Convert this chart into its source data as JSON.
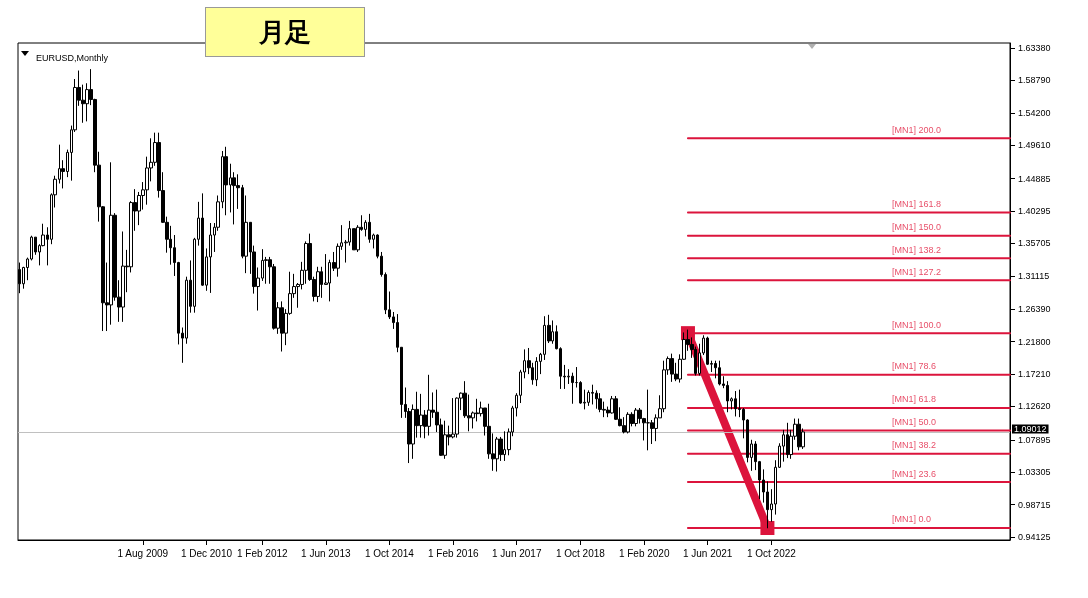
{
  "chart_data": {
    "type": "candlestick",
    "title": "月足",
    "subtitle": "EURUSD,Monthly",
    "color": "#000000",
    "x": [
      "2007-01",
      "2007-02",
      "2007-03",
      "2007-04",
      "2007-05",
      "2007-06",
      "2007-07",
      "2007-08",
      "2007-09",
      "2007-10",
      "2007-11",
      "2007-12",
      "2008-01",
      "2008-02",
      "2008-03",
      "2008-04",
      "2008-05",
      "2008-06",
      "2008-07",
      "2008-08",
      "2008-09",
      "2008-10",
      "2008-11",
      "2008-12",
      "2009-01",
      "2009-02",
      "2009-03",
      "2009-04",
      "2009-05",
      "2009-06",
      "2009-07",
      "2009-08",
      "2009-09",
      "2009-10",
      "2009-11",
      "2009-12",
      "2010-01",
      "2010-02",
      "2010-03",
      "2010-04",
      "2010-05",
      "2010-06",
      "2010-07",
      "2010-08",
      "2010-09",
      "2010-10",
      "2010-11",
      "2010-12",
      "2011-01",
      "2011-02",
      "2011-03",
      "2011-04",
      "2011-05",
      "2011-06",
      "2011-07",
      "2011-08",
      "2011-09",
      "2011-10",
      "2011-11",
      "2011-12",
      "2012-01",
      "2012-02",
      "2012-03",
      "2012-04",
      "2012-05",
      "2012-06",
      "2012-07",
      "2012-08",
      "2012-09",
      "2012-10",
      "2012-11",
      "2012-12",
      "2013-01",
      "2013-02",
      "2013-03",
      "2013-04",
      "2013-05",
      "2013-06",
      "2013-07",
      "2013-08",
      "2013-09",
      "2013-10",
      "2013-11",
      "2013-12",
      "2014-01",
      "2014-02",
      "2014-03",
      "2014-04",
      "2014-05",
      "2014-06",
      "2014-07",
      "2014-08",
      "2014-09",
      "2014-10",
      "2014-11",
      "2014-12",
      "2015-01",
      "2015-02",
      "2015-03",
      "2015-04",
      "2015-05",
      "2015-06",
      "2015-07",
      "2015-08",
      "2015-09",
      "2015-10",
      "2015-11",
      "2015-12",
      "2016-01",
      "2016-02",
      "2016-03",
      "2016-04",
      "2016-05",
      "2016-06",
      "2016-07",
      "2016-08",
      "2016-09",
      "2016-10",
      "2016-11",
      "2016-12",
      "2017-01",
      "2017-02",
      "2017-03",
      "2017-04",
      "2017-05",
      "2017-06",
      "2017-07",
      "2017-08",
      "2017-09",
      "2017-10",
      "2017-11",
      "2017-12",
      "2018-01",
      "2018-02",
      "2018-03",
      "2018-04",
      "2018-05",
      "2018-06",
      "2018-07",
      "2018-08",
      "2018-09",
      "2018-10",
      "2018-11",
      "2018-12",
      "2019-01",
      "2019-02",
      "2019-03",
      "2019-04",
      "2019-05",
      "2019-06",
      "2019-07",
      "2019-08",
      "2019-09",
      "2019-10",
      "2019-11",
      "2019-12",
      "2020-01",
      "2020-02",
      "2020-03",
      "2020-04",
      "2020-05",
      "2020-06",
      "2020-07",
      "2020-08",
      "2020-09",
      "2020-10",
      "2020-11",
      "2020-12",
      "2021-01",
      "2021-02",
      "2021-03",
      "2021-04",
      "2021-05",
      "2021-06",
      "2021-07",
      "2021-08",
      "2021-09",
      "2021-10",
      "2021-11",
      "2021-12",
      "2022-01",
      "2022-02",
      "2022-03",
      "2022-04",
      "2022-05",
      "2022-06",
      "2022-07",
      "2022-08",
      "2022-09",
      "2022-10",
      "2022-11",
      "2022-12",
      "2023-01",
      "2023-02",
      "2023-03",
      "2023-04",
      "2023-05",
      "2023-06"
    ],
    "ohlc": [
      [
        1.32,
        1.33,
        1.2866,
        1.3
      ],
      [
        1.3,
        1.324,
        1.293,
        1.323
      ],
      [
        1.323,
        1.337,
        1.305,
        1.335
      ],
      [
        1.335,
        1.368,
        1.333,
        1.366
      ],
      [
        1.366,
        1.366,
        1.341,
        1.345
      ],
      [
        1.345,
        1.356,
        1.326,
        1.354
      ],
      [
        1.354,
        1.385,
        1.353,
        1.369
      ],
      [
        1.369,
        1.38,
        1.326,
        1.363
      ],
      [
        1.363,
        1.428,
        1.356,
        1.426
      ],
      [
        1.426,
        1.453,
        1.408,
        1.448
      ],
      [
        1.448,
        1.497,
        1.442,
        1.463
      ],
      [
        1.463,
        1.475,
        1.435,
        1.459
      ],
      [
        1.459,
        1.49,
        1.451,
        1.486
      ],
      [
        1.486,
        1.524,
        1.446,
        1.518
      ],
      [
        1.518,
        1.59,
        1.515,
        1.578
      ],
      [
        1.578,
        1.602,
        1.552,
        1.56
      ],
      [
        1.56,
        1.582,
        1.528,
        1.555
      ],
      [
        1.555,
        1.584,
        1.53,
        1.575
      ],
      [
        1.575,
        1.604,
        1.553,
        1.561
      ],
      [
        1.561,
        1.562,
        1.458,
        1.468
      ],
      [
        1.468,
        1.487,
        1.388,
        1.409
      ],
      [
        1.409,
        1.41,
        1.233,
        1.273
      ],
      [
        1.273,
        1.33,
        1.233,
        1.27
      ],
      [
        1.27,
        1.472,
        1.242,
        1.397
      ],
      [
        1.397,
        1.4,
        1.276,
        1.281
      ],
      [
        1.281,
        1.305,
        1.246,
        1.267
      ],
      [
        1.267,
        1.374,
        1.246,
        1.325
      ],
      [
        1.325,
        1.348,
        1.288,
        1.324
      ],
      [
        1.324,
        1.417,
        1.316,
        1.415
      ],
      [
        1.415,
        1.434,
        1.375,
        1.403
      ],
      [
        1.403,
        1.43,
        1.383,
        1.425
      ],
      [
        1.425,
        1.444,
        1.405,
        1.433
      ],
      [
        1.433,
        1.48,
        1.412,
        1.464
      ],
      [
        1.464,
        1.506,
        1.445,
        1.472
      ],
      [
        1.472,
        1.514,
        1.467,
        1.5
      ],
      [
        1.5,
        1.514,
        1.422,
        1.432
      ],
      [
        1.432,
        1.458,
        1.386,
        1.387
      ],
      [
        1.387,
        1.395,
        1.344,
        1.363
      ],
      [
        1.363,
        1.382,
        1.327,
        1.351
      ],
      [
        1.351,
        1.369,
        1.311,
        1.33
      ],
      [
        1.33,
        1.331,
        1.214,
        1.23
      ],
      [
        1.23,
        1.238,
        1.188,
        1.223
      ],
      [
        1.223,
        1.31,
        1.215,
        1.305
      ],
      [
        1.305,
        1.333,
        1.259,
        1.268
      ],
      [
        1.268,
        1.365,
        1.259,
        1.363
      ],
      [
        1.363,
        1.416,
        1.354,
        1.393
      ],
      [
        1.393,
        1.428,
        1.297,
        1.298
      ],
      [
        1.298,
        1.35,
        1.29,
        1.338
      ],
      [
        1.338,
        1.386,
        1.287,
        1.369
      ],
      [
        1.369,
        1.386,
        1.345,
        1.38
      ],
      [
        1.38,
        1.425,
        1.375,
        1.416
      ],
      [
        1.416,
        1.488,
        1.407,
        1.48
      ],
      [
        1.48,
        1.494,
        1.397,
        1.44
      ],
      [
        1.44,
        1.47,
        1.401,
        1.45
      ],
      [
        1.45,
        1.458,
        1.384,
        1.439
      ],
      [
        1.439,
        1.455,
        1.406,
        1.436
      ],
      [
        1.436,
        1.44,
        1.336,
        1.339
      ],
      [
        1.339,
        1.425,
        1.315,
        1.387
      ],
      [
        1.387,
        1.387,
        1.314,
        1.345
      ],
      [
        1.345,
        1.354,
        1.286,
        1.296
      ],
      [
        1.296,
        1.323,
        1.262,
        1.308
      ],
      [
        1.308,
        1.349,
        1.304,
        1.333
      ],
      [
        1.333,
        1.338,
        1.3,
        1.334
      ],
      [
        1.334,
        1.338,
        1.3,
        1.324
      ],
      [
        1.324,
        1.328,
        1.235,
        1.237
      ],
      [
        1.237,
        1.274,
        1.229,
        1.266
      ],
      [
        1.266,
        1.275,
        1.204,
        1.23
      ],
      [
        1.23,
        1.264,
        1.213,
        1.258
      ],
      [
        1.258,
        1.317,
        1.256,
        1.286
      ],
      [
        1.286,
        1.314,
        1.28,
        1.296
      ],
      [
        1.296,
        1.301,
        1.266,
        1.299
      ],
      [
        1.299,
        1.331,
        1.292,
        1.319
      ],
      [
        1.319,
        1.36,
        1.3,
        1.357
      ],
      [
        1.357,
        1.371,
        1.304,
        1.306
      ],
      [
        1.306,
        1.31,
        1.275,
        1.282
      ],
      [
        1.282,
        1.324,
        1.274,
        1.317
      ],
      [
        1.317,
        1.324,
        1.28,
        1.299
      ],
      [
        1.299,
        1.342,
        1.299,
        1.301
      ],
      [
        1.301,
        1.334,
        1.275,
        1.33
      ],
      [
        1.33,
        1.345,
        1.318,
        1.322
      ],
      [
        1.322,
        1.357,
        1.31,
        1.353
      ],
      [
        1.353,
        1.383,
        1.348,
        1.358
      ],
      [
        1.358,
        1.362,
        1.33,
        1.359
      ],
      [
        1.359,
        1.389,
        1.354,
        1.378
      ],
      [
        1.378,
        1.378,
        1.348,
        1.348
      ],
      [
        1.348,
        1.383,
        1.345,
        1.38
      ],
      [
        1.38,
        1.397,
        1.375,
        1.377
      ],
      [
        1.377,
        1.39,
        1.367,
        1.387
      ],
      [
        1.387,
        1.399,
        1.358,
        1.363
      ],
      [
        1.363,
        1.371,
        1.35,
        1.369
      ],
      [
        1.369,
        1.37,
        1.336,
        1.339
      ],
      [
        1.339,
        1.345,
        1.31,
        1.313
      ],
      [
        1.313,
        1.316,
        1.257,
        1.263
      ],
      [
        1.263,
        1.289,
        1.25,
        1.253
      ],
      [
        1.253,
        1.26,
        1.236,
        1.245
      ],
      [
        1.245,
        1.257,
        1.203,
        1.21
      ],
      [
        1.21,
        1.21,
        1.11,
        1.129
      ],
      [
        1.129,
        1.153,
        1.11,
        1.119
      ],
      [
        1.119,
        1.124,
        1.046,
        1.073
      ],
      [
        1.073,
        1.129,
        1.052,
        1.122
      ],
      [
        1.122,
        1.147,
        1.082,
        1.099
      ],
      [
        1.099,
        1.144,
        1.082,
        1.114
      ],
      [
        1.114,
        1.121,
        1.081,
        1.098
      ],
      [
        1.098,
        1.171,
        1.085,
        1.121
      ],
      [
        1.121,
        1.146,
        1.11,
        1.118
      ],
      [
        1.118,
        1.15,
        1.09,
        1.1
      ],
      [
        1.1,
        1.109,
        1.056,
        1.057
      ],
      [
        1.057,
        1.106,
        1.052,
        1.086
      ],
      [
        1.086,
        1.099,
        1.071,
        1.083
      ],
      [
        1.083,
        1.138,
        1.081,
        1.087
      ],
      [
        1.087,
        1.139,
        1.082,
        1.138
      ],
      [
        1.138,
        1.146,
        1.121,
        1.145
      ],
      [
        1.145,
        1.162,
        1.11,
        1.113
      ],
      [
        1.113,
        1.143,
        1.091,
        1.11
      ],
      [
        1.11,
        1.119,
        1.095,
        1.117
      ],
      [
        1.117,
        1.137,
        1.105,
        1.116
      ],
      [
        1.116,
        1.133,
        1.112,
        1.124
      ],
      [
        1.124,
        1.124,
        1.085,
        1.098
      ],
      [
        1.098,
        1.13,
        1.052,
        1.059
      ],
      [
        1.059,
        1.088,
        1.035,
        1.052
      ],
      [
        1.052,
        1.083,
        1.034,
        1.08
      ],
      [
        1.08,
        1.083,
        1.049,
        1.058
      ],
      [
        1.058,
        1.091,
        1.049,
        1.065
      ],
      [
        1.065,
        1.095,
        1.057,
        1.09
      ],
      [
        1.09,
        1.127,
        1.084,
        1.124
      ],
      [
        1.124,
        1.145,
        1.112,
        1.142
      ],
      [
        1.142,
        1.178,
        1.131,
        1.175
      ],
      [
        1.175,
        1.207,
        1.166,
        1.191
      ],
      [
        1.191,
        1.209,
        1.172,
        1.181
      ],
      [
        1.181,
        1.188,
        1.157,
        1.164
      ],
      [
        1.164,
        1.196,
        1.155,
        1.19
      ],
      [
        1.19,
        1.202,
        1.172,
        1.2
      ],
      [
        1.2,
        1.254,
        1.192,
        1.241
      ],
      [
        1.241,
        1.256,
        1.216,
        1.219
      ],
      [
        1.219,
        1.248,
        1.215,
        1.232
      ],
      [
        1.232,
        1.241,
        1.207,
        1.208
      ],
      [
        1.208,
        1.21,
        1.151,
        1.169
      ],
      [
        1.169,
        1.185,
        1.151,
        1.168
      ],
      [
        1.168,
        1.179,
        1.158,
        1.169
      ],
      [
        1.169,
        1.174,
        1.13,
        1.16
      ],
      [
        1.16,
        1.182,
        1.153,
        1.16
      ],
      [
        1.16,
        1.162,
        1.13,
        1.131
      ],
      [
        1.131,
        1.15,
        1.122,
        1.132
      ],
      [
        1.132,
        1.149,
        1.127,
        1.146
      ],
      [
        1.146,
        1.157,
        1.129,
        1.145
      ],
      [
        1.145,
        1.149,
        1.123,
        1.137
      ],
      [
        1.137,
        1.145,
        1.118,
        1.122
      ],
      [
        1.122,
        1.133,
        1.111,
        1.121
      ],
      [
        1.121,
        1.126,
        1.111,
        1.117
      ],
      [
        1.117,
        1.141,
        1.116,
        1.137
      ],
      [
        1.137,
        1.141,
        1.107,
        1.108
      ],
      [
        1.108,
        1.125,
        1.098,
        1.099
      ],
      [
        1.099,
        1.111,
        1.088,
        1.09
      ],
      [
        1.09,
        1.118,
        1.088,
        1.115
      ],
      [
        1.115,
        1.118,
        1.098,
        1.102
      ],
      [
        1.102,
        1.124,
        1.098,
        1.121
      ],
      [
        1.121,
        1.124,
        1.102,
        1.109
      ],
      [
        1.109,
        1.11,
        1.078,
        1.103
      ],
      [
        1.103,
        1.15,
        1.064,
        1.103
      ],
      [
        1.103,
        1.107,
        1.073,
        1.095
      ],
      [
        1.095,
        1.115,
        1.077,
        1.11
      ],
      [
        1.11,
        1.142,
        1.11,
        1.123
      ],
      [
        1.123,
        1.191,
        1.118,
        1.178
      ],
      [
        1.178,
        1.197,
        1.171,
        1.194
      ],
      [
        1.194,
        1.201,
        1.161,
        1.172
      ],
      [
        1.172,
        1.188,
        1.162,
        1.165
      ],
      [
        1.165,
        1.2,
        1.16,
        1.193
      ],
      [
        1.193,
        1.231,
        1.192,
        1.221
      ],
      [
        1.221,
        1.235,
        1.205,
        1.214
      ],
      [
        1.214,
        1.224,
        1.195,
        1.207
      ],
      [
        1.207,
        1.211,
        1.17,
        1.173
      ],
      [
        1.173,
        1.215,
        1.17,
        1.202
      ],
      [
        1.202,
        1.227,
        1.199,
        1.223
      ],
      [
        1.223,
        1.225,
        1.185,
        1.186
      ],
      [
        1.186,
        1.191,
        1.175,
        1.187
      ],
      [
        1.187,
        1.191,
        1.166,
        1.181
      ],
      [
        1.181,
        1.191,
        1.156,
        1.158
      ],
      [
        1.158,
        1.169,
        1.152,
        1.156
      ],
      [
        1.156,
        1.162,
        1.118,
        1.134
      ],
      [
        1.134,
        1.139,
        1.122,
        1.137
      ],
      [
        1.137,
        1.148,
        1.112,
        1.123
      ],
      [
        1.123,
        1.15,
        1.111,
        1.122
      ],
      [
        1.122,
        1.124,
        1.081,
        1.107
      ],
      [
        1.107,
        1.108,
        1.047,
        1.054
      ],
      [
        1.054,
        1.079,
        1.035,
        1.073
      ],
      [
        1.073,
        1.077,
        1.036,
        1.048
      ],
      [
        1.048,
        1.049,
        0.995,
        1.022
      ],
      [
        1.022,
        1.037,
        0.99,
        1.005
      ],
      [
        1.005,
        1.02,
        0.9536,
        0.98
      ],
      [
        0.98,
        1.009,
        0.963,
        0.988
      ],
      [
        0.988,
        1.05,
        0.973,
        1.04
      ],
      [
        1.04,
        1.074,
        1.039,
        1.07
      ],
      [
        1.07,
        1.093,
        1.048,
        1.086
      ],
      [
        1.086,
        1.103,
        1.053,
        1.058
      ],
      [
        1.058,
        1.093,
        1.052,
        1.084
      ],
      [
        1.084,
        1.109,
        1.079,
        1.101
      ],
      [
        1.101,
        1.109,
        1.064,
        1.069
      ],
      [
        1.069,
        1.095,
        1.066,
        1.0901
      ]
    ],
    "series": [
      {
        "type": "line",
        "name": "[MN1] 200.0",
        "color": "#dc143c",
        "x": [
          "2021-01",
          "2027-10"
        ],
        "values": [
          1.506,
          1.506
        ]
      },
      {
        "type": "line",
        "name": "[MN1] 161.8",
        "color": "#dc143c",
        "x": [
          "2021-01",
          "2027-10"
        ],
        "values": [
          1.401,
          1.401
        ]
      },
      {
        "type": "line",
        "name": "[MN1] 150.0",
        "color": "#dc143c",
        "x": [
          "2021-01",
          "2027-10"
        ],
        "values": [
          1.368,
          1.368
        ]
      },
      {
        "type": "line",
        "name": "[MN1] 138.2",
        "color": "#dc143c",
        "x": [
          "2021-01",
          "2027-10"
        ],
        "values": [
          1.336,
          1.336
        ]
      },
      {
        "type": "line",
        "name": "[MN1] 127.2",
        "color": "#dc143c",
        "x": [
          "2021-01",
          "2027-10"
        ],
        "values": [
          1.305,
          1.305
        ]
      },
      {
        "type": "line",
        "name": "[MN1] 100.0",
        "color": "#dc143c",
        "x": [
          "2021-01",
          "2027-10"
        ],
        "values": [
          1.23,
          1.23
        ]
      },
      {
        "type": "line",
        "name": "[MN1] 78.6",
        "color": "#dc143c",
        "x": [
          "2021-01",
          "2027-10"
        ],
        "values": [
          1.171,
          1.171
        ]
      },
      {
        "type": "line",
        "name": "[MN1] 61.8",
        "color": "#dc143c",
        "x": [
          "2021-01",
          "2027-10"
        ],
        "values": [
          1.124,
          1.124
        ]
      },
      {
        "type": "line",
        "name": "[MN1] 50.0",
        "color": "#dc143c",
        "x": [
          "2021-01",
          "2027-10"
        ],
        "values": [
          1.092,
          1.092
        ]
      },
      {
        "type": "line",
        "name": "[MN1] 38.2",
        "color": "#dc143c",
        "x": [
          "2021-01",
          "2027-10"
        ],
        "values": [
          1.059,
          1.059
        ]
      },
      {
        "type": "line",
        "name": "[MN1] 23.6",
        "color": "#dc143c",
        "x": [
          "2021-01",
          "2027-10"
        ],
        "values": [
          1.019,
          1.019
        ]
      },
      {
        "type": "line",
        "name": "[MN1] 0.0",
        "color": "#dc143c",
        "x": [
          "2021-01",
          "2027-10"
        ],
        "values": [
          0.954,
          0.954
        ]
      },
      {
        "type": "line",
        "color": "#dc143c",
        "marker": "square",
        "x": [
          "2021-01",
          "2022-09"
        ],
        "values": [
          1.23,
          0.954
        ]
      }
    ],
    "ref_lines": [
      {
        "axis": "y",
        "value": 1.09012,
        "label": "1.09012",
        "color": "#c0c0c0"
      }
    ],
    "xlim": [
      "2006-12-20",
      "2027-10"
    ],
    "xticks": [
      {
        "value": "2009-08",
        "label": "1 Aug 2009"
      },
      {
        "value": "2010-12",
        "label": "1 Dec 2010"
      },
      {
        "value": "2012-02",
        "label": "1 Feb 2012"
      },
      {
        "value": "2013-06",
        "label": "1 Jun 2013"
      },
      {
        "value": "2014-10",
        "label": "1 Oct 2014"
      },
      {
        "value": "2016-02",
        "label": "1 Feb 2016"
      },
      {
        "value": "2017-06",
        "label": "1 Jun 2017"
      },
      {
        "value": "2018-10",
        "label": "1 Oct 2018"
      },
      {
        "value": "2020-02",
        "label": "1 Feb 2020"
      },
      {
        "value": "2021-06",
        "label": "1 Jun 2021"
      },
      {
        "value": "2022-10",
        "label": "1 Oct 2022"
      }
    ],
    "ylim": [
      0.937,
      1.641
    ],
    "yticks": [
      {
        "value": 0.94125,
        "label": "0.94125"
      },
      {
        "value": 0.98715,
        "label": "0.98715"
      },
      {
        "value": 1.03305,
        "label": "1.03305"
      },
      {
        "value": 1.07895,
        "label": "1.07895"
      },
      {
        "value": 1.1262,
        "label": "1.12620"
      },
      {
        "value": 1.1721,
        "label": "1.17210"
      },
      {
        "value": 1.218,
        "label": "1.21800"
      },
      {
        "value": 1.2639,
        "label": "1.26390"
      },
      {
        "value": 1.31115,
        "label": "1.31115"
      },
      {
        "value": 1.35705,
        "label": "1.35705"
      },
      {
        "value": 1.40295,
        "label": "1.40295"
      },
      {
        "value": 1.44885,
        "label": "1.44885"
      },
      {
        "value": 1.4961,
        "label": "1.49610"
      },
      {
        "value": 1.542,
        "label": "1.54200"
      },
      {
        "value": 1.5879,
        "label": "1.58790"
      },
      {
        "value": 1.6338,
        "label": "1.63380"
      }
    ],
    "grid": false,
    "legend": false
  }
}
